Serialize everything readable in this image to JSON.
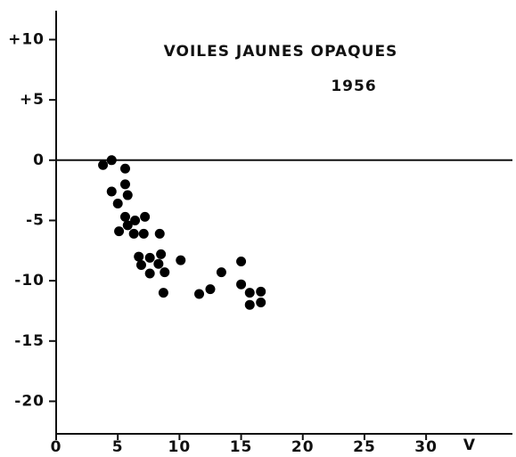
{
  "chart_data": {
    "type": "scatter",
    "title": "VOILES JAUNES OPAQUES",
    "subtitle": "1956",
    "xlabel": "V",
    "color": "#000000",
    "x": [
      3.8,
      4.5,
      5.6,
      4.5,
      5.6,
      5.8,
      5.0,
      5.6,
      5.1,
      5.8,
      6.4,
      6.3,
      7.2,
      7.1,
      8.4,
      6.7,
      6.9,
      7.6,
      7.6,
      8.3,
      8.5,
      8.8,
      8.7,
      10.1,
      11.6,
      12.5,
      13.4,
      15.0,
      15.0,
      15.7,
      15.7,
      16.6,
      16.6
    ],
    "y": [
      -0.4,
      0,
      -0.7,
      -2.6,
      -2.0,
      -2.9,
      -3.6,
      -4.7,
      -5.9,
      -5.4,
      -5.0,
      -6.1,
      -4.7,
      -6.1,
      -6.1,
      -8.0,
      -8.7,
      -8.1,
      -9.4,
      -8.6,
      -7.8,
      -9.3,
      -11.0,
      -8.3,
      -11.1,
      -10.7,
      -9.3,
      -8.4,
      -10.3,
      -11.0,
      -12.0,
      -10.9,
      -11.8
    ],
    "xlim": [
      0,
      37
    ],
    "ylim": [
      -22.7,
      12.4
    ],
    "xticks": [
      0,
      5,
      10,
      15,
      20,
      25,
      30
    ],
    "yticks": [
      {
        "value": 10,
        "label": "+10"
      },
      {
        "value": 5,
        "label": "+5"
      },
      0,
      -5,
      -10,
      -15,
      -20
    ],
    "hlines": [
      0
    ]
  }
}
